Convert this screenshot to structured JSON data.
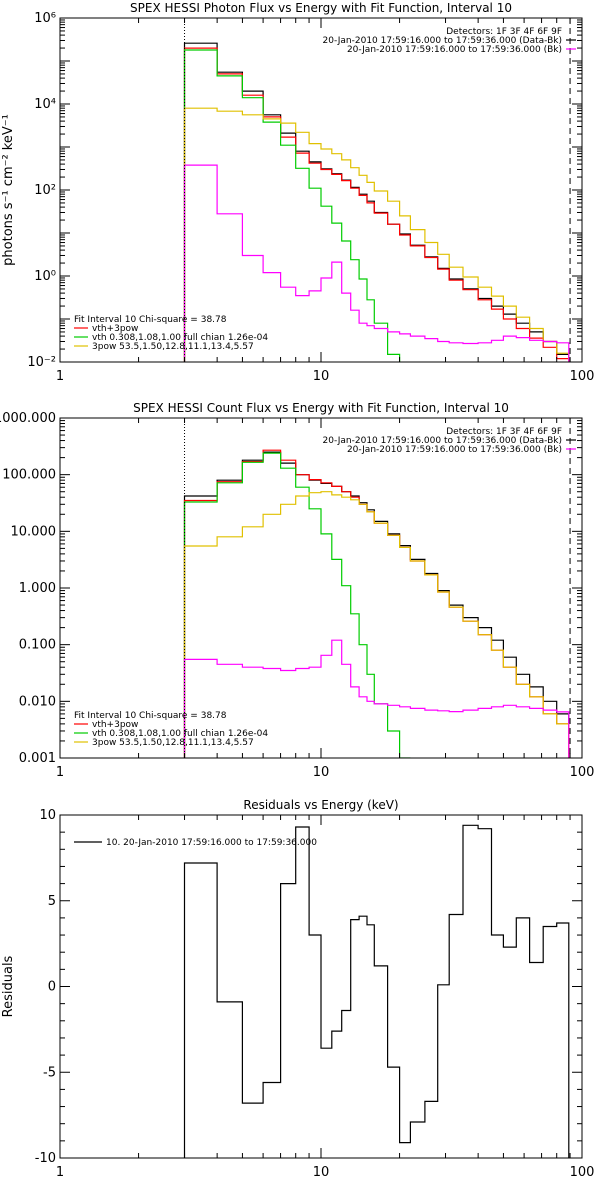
{
  "chart_data": [
    {
      "type": "line",
      "title": "SPEX HESSI Photon Flux vs Energy with Fit Function, Interval 10",
      "ylabel": "photons s⁻¹ cm⁻² keV⁻¹",
      "xlabel": "",
      "xscale": "log",
      "yscale": "log",
      "xlim": [
        1,
        100
      ],
      "ylim": [
        0.01,
        1000000
      ],
      "xticks": [
        {
          "v": 1,
          "label": "1"
        },
        {
          "v": 10,
          "label": "10"
        },
        {
          "v": 100,
          "label": "100"
        }
      ],
      "yticks": [
        {
          "v": 0.01,
          "label": "10⁻²"
        },
        {
          "v": 1,
          "label": "10⁰"
        },
        {
          "v": 100,
          "label": "10²"
        },
        {
          "v": 10000,
          "label": "10⁴"
        },
        {
          "v": 1000000,
          "label": "10⁶"
        }
      ],
      "vlines": [
        {
          "x": 3,
          "style": "dotted"
        },
        {
          "x": 90,
          "style": "dashed"
        }
      ],
      "legend_top": [
        "Detectors: 1F 3F 4F 6F 9F",
        "20-Jan-2010 17:59:16.000 to 17:59:36.000 (Data-Bk)",
        "20-Jan-2010 17:59:16.000 to 17:59:36.000 (Bk)"
      ],
      "legend_bottom": [
        "Fit Interval 10   Chi-square = 38.78",
        "vth+3pow",
        "vth 0.308,1.08,1.00  full chian 1.26e-04",
        "3pow 53.5,1.50,12.8,11.1,13.4,5.57"
      ],
      "edges": [
        3,
        4,
        5,
        6,
        7,
        8,
        9,
        10,
        11,
        12,
        13,
        14,
        15,
        16,
        18,
        20,
        22,
        25,
        28,
        31,
        35,
        40,
        45,
        50,
        56,
        63,
        71,
        80,
        89
      ],
      "series": [
        {
          "name": "20-Jan-2010 17:59:16.000 to 17:59:36.000 (Data-Bk)",
          "color": "#000000",
          "values": [
            260000,
            55000,
            20000,
            5600,
            2100,
            800,
            450,
            310,
            240,
            170,
            115,
            80,
            55,
            30,
            16,
            9.5,
            5.2,
            2.8,
            1.5,
            0.85,
            0.5,
            0.3,
            0.2,
            0.13,
            0.08,
            0.05,
            0.03,
            0.015
          ]
        },
        {
          "name": "vth+3pow",
          "color": "#ff0000",
          "values": [
            200000,
            50000,
            16000,
            5000,
            1700,
            720,
            420,
            300,
            230,
            165,
            110,
            75,
            50,
            29,
            16,
            9,
            5,
            2.7,
            1.45,
            0.8,
            0.48,
            0.28,
            0.17,
            0.1,
            0.06,
            0.036,
            0.022,
            0.012
          ]
        },
        {
          "name": "vth 0.308,1.08,1.00  full chian 1.26e-04",
          "color": "#00cc00",
          "values": [
            180000,
            45000,
            14000,
            3800,
            1100,
            320,
            110,
            42,
            17,
            6.5,
            2.4,
            0.85,
            0.28,
            0.08,
            0.015
          ]
        },
        {
          "name": "3pow 53.5,1.50,12.8,11.1,13.4,5.57",
          "color": "#e0c000",
          "values": [
            8000,
            6800,
            5600,
            4500,
            3600,
            2200,
            1200,
            900,
            700,
            500,
            330,
            220,
            150,
            95,
            55,
            25,
            12,
            6,
            3.2,
            1.6,
            0.95,
            0.55,
            0.34,
            0.2,
            0.11,
            0.06,
            0.03,
            0.016
          ]
        },
        {
          "name": "20-Jan-2010 17:59:16.000 to 17:59:36.000 (Bk)",
          "color": "#ff00ff",
          "values": [
            380,
            28,
            3,
            1.2,
            0.55,
            0.35,
            0.45,
            0.9,
            2.1,
            0.4,
            0.16,
            0.08,
            0.07,
            0.06,
            0.05,
            0.045,
            0.04,
            0.035,
            0.03,
            0.028,
            0.027,
            0.028,
            0.032,
            0.04,
            0.037,
            0.032,
            0.03,
            0.028
          ]
        }
      ]
    },
    {
      "type": "line",
      "title": "SPEX HESSI Count Flux vs Energy with Fit Function, Interval 10",
      "ylabel": "",
      "xlabel": "",
      "xscale": "log",
      "yscale": "log",
      "xlim": [
        1,
        100
      ],
      "ylim": [
        0.001,
        1000
      ],
      "xticks": [
        {
          "v": 1,
          "label": "1"
        },
        {
          "v": 10,
          "label": "10"
        },
        {
          "v": 100,
          "label": "100"
        }
      ],
      "yticks": [
        {
          "v": 0.001,
          "label": "0.001"
        },
        {
          "v": 0.01,
          "label": "0.010"
        },
        {
          "v": 0.1,
          "label": "0.100"
        },
        {
          "v": 1,
          "label": "1.000"
        },
        {
          "v": 10,
          "label": "10.000"
        },
        {
          "v": 100,
          "label": "100.000"
        },
        {
          "v": 1000,
          "label": "1000.000"
        }
      ],
      "vlines": [
        {
          "x": 3,
          "style": "dotted"
        },
        {
          "x": 90,
          "style": "dashed"
        }
      ],
      "legend_top": [
        "Detectors: 1F 3F 4F 6F 9F",
        "20-Jan-2010 17:59:16.000 to 17:59:36.000 (Data-Bk)",
        "20-Jan-2010 17:59:16.000 to 17:59:36.000 (Bk)"
      ],
      "legend_bottom": [
        "Fit Interval 10   Chi-square = 38.78",
        "vth+3pow",
        "vth 0.308,1.08,1.00  full chian 1.26e-04",
        "3pow 53.5,1.50,12.8,11.1,13.4,5.57"
      ],
      "edges": [
        3,
        4,
        5,
        6,
        7,
        8,
        9,
        10,
        11,
        12,
        13,
        14,
        15,
        16,
        18,
        20,
        22,
        25,
        28,
        31,
        35,
        40,
        45,
        50,
        56,
        63,
        71,
        80,
        89
      ],
      "series": [
        {
          "name": "20-Jan-2010 17:59:16.000 to 17:59:36.000 (Data-Bk)",
          "color": "#000000",
          "values": [
            42,
            80,
            180,
            250,
            160,
            100,
            80,
            70,
            62,
            50,
            42,
            32,
            24,
            15,
            9,
            5.6,
            3.2,
            1.8,
            0.9,
            0.5,
            0.3,
            0.2,
            0.12,
            0.06,
            0.03,
            0.018,
            0.01,
            0.006
          ]
        },
        {
          "name": "vth+3pow",
          "color": "#ff0000",
          "values": [
            35,
            75,
            170,
            270,
            180,
            100,
            82,
            72,
            62,
            50,
            40,
            30,
            22,
            14,
            8.5,
            5.2,
            3,
            1.7,
            0.85,
            0.46,
            0.26,
            0.15,
            0.08,
            0.04,
            0.02,
            0.012,
            0.006,
            0.004
          ]
        },
        {
          "name": "vth 0.308,1.08,1.00  full chian 1.26e-04",
          "color": "#00cc00",
          "values": [
            33,
            72,
            165,
            240,
            130,
            60,
            25,
            9,
            3.2,
            1.1,
            0.35,
            0.1,
            0.03,
            0.009,
            0.003,
            0.001
          ]
        },
        {
          "name": "3pow 53.5,1.50,12.8,11.1,13.4,5.57",
          "color": "#e0c000",
          "values": [
            5.5,
            8,
            12,
            20,
            30,
            42,
            48,
            50,
            44,
            40,
            36,
            30,
            22,
            14,
            8.5,
            5.2,
            3,
            1.7,
            0.85,
            0.46,
            0.26,
            0.15,
            0.08,
            0.04,
            0.02,
            0.012,
            0.006,
            0.004
          ]
        },
        {
          "name": "20-Jan-2010 17:59:16.000 to 17:59:36.000 (Bk)",
          "color": "#ff00ff",
          "values": [
            0.055,
            0.045,
            0.04,
            0.038,
            0.035,
            0.038,
            0.04,
            0.065,
            0.12,
            0.045,
            0.018,
            0.012,
            0.01,
            0.009,
            0.0085,
            0.008,
            0.0075,
            0.007,
            0.0068,
            0.0066,
            0.007,
            0.0075,
            0.008,
            0.0085,
            0.008,
            0.0075,
            0.007,
            0.0065
          ]
        }
      ]
    },
    {
      "type": "line",
      "title": "Residuals vs Energy (keV)",
      "ylabel": "Residuals",
      "xlabel": "",
      "xscale": "log",
      "yscale": "linear",
      "xlim": [
        1,
        100
      ],
      "ylim": [
        -10,
        10
      ],
      "xticks": [
        {
          "v": 1,
          "label": "1"
        },
        {
          "v": 10,
          "label": "10"
        },
        {
          "v": 100,
          "label": "100"
        }
      ],
      "yticks": [
        {
          "v": -10,
          "label": "-10"
        },
        {
          "v": -5,
          "label": "-5"
        },
        {
          "v": 0,
          "label": "0"
        },
        {
          "v": 5,
          "label": "5"
        },
        {
          "v": 10,
          "label": "10"
        }
      ],
      "legend_top": [
        "10. 20-Jan-2010 17:59:16.000 to 17:59:36.000"
      ],
      "edges": [
        3,
        4,
        5,
        6,
        7,
        8,
        9,
        10,
        11,
        12,
        13,
        14,
        15,
        16,
        18,
        20,
        22,
        25,
        28,
        31,
        35,
        40,
        45,
        50,
        56,
        63,
        71,
        80,
        89
      ],
      "series": [
        {
          "name": "10. 20-Jan-2010 17:59:16.000 to 17:59:36.000",
          "color": "#000000",
          "values": [
            7.2,
            -0.9,
            -6.8,
            -5.6,
            6.0,
            9.3,
            3.0,
            -3.6,
            -2.6,
            -1.4,
            3.9,
            4.1,
            3.6,
            1.2,
            -4.7,
            -9.1,
            -7.9,
            -6.7,
            0.1,
            4.2,
            9.4,
            9.2,
            3.0,
            2.3,
            4.0,
            1.4,
            3.5,
            3.7
          ]
        }
      ]
    }
  ]
}
